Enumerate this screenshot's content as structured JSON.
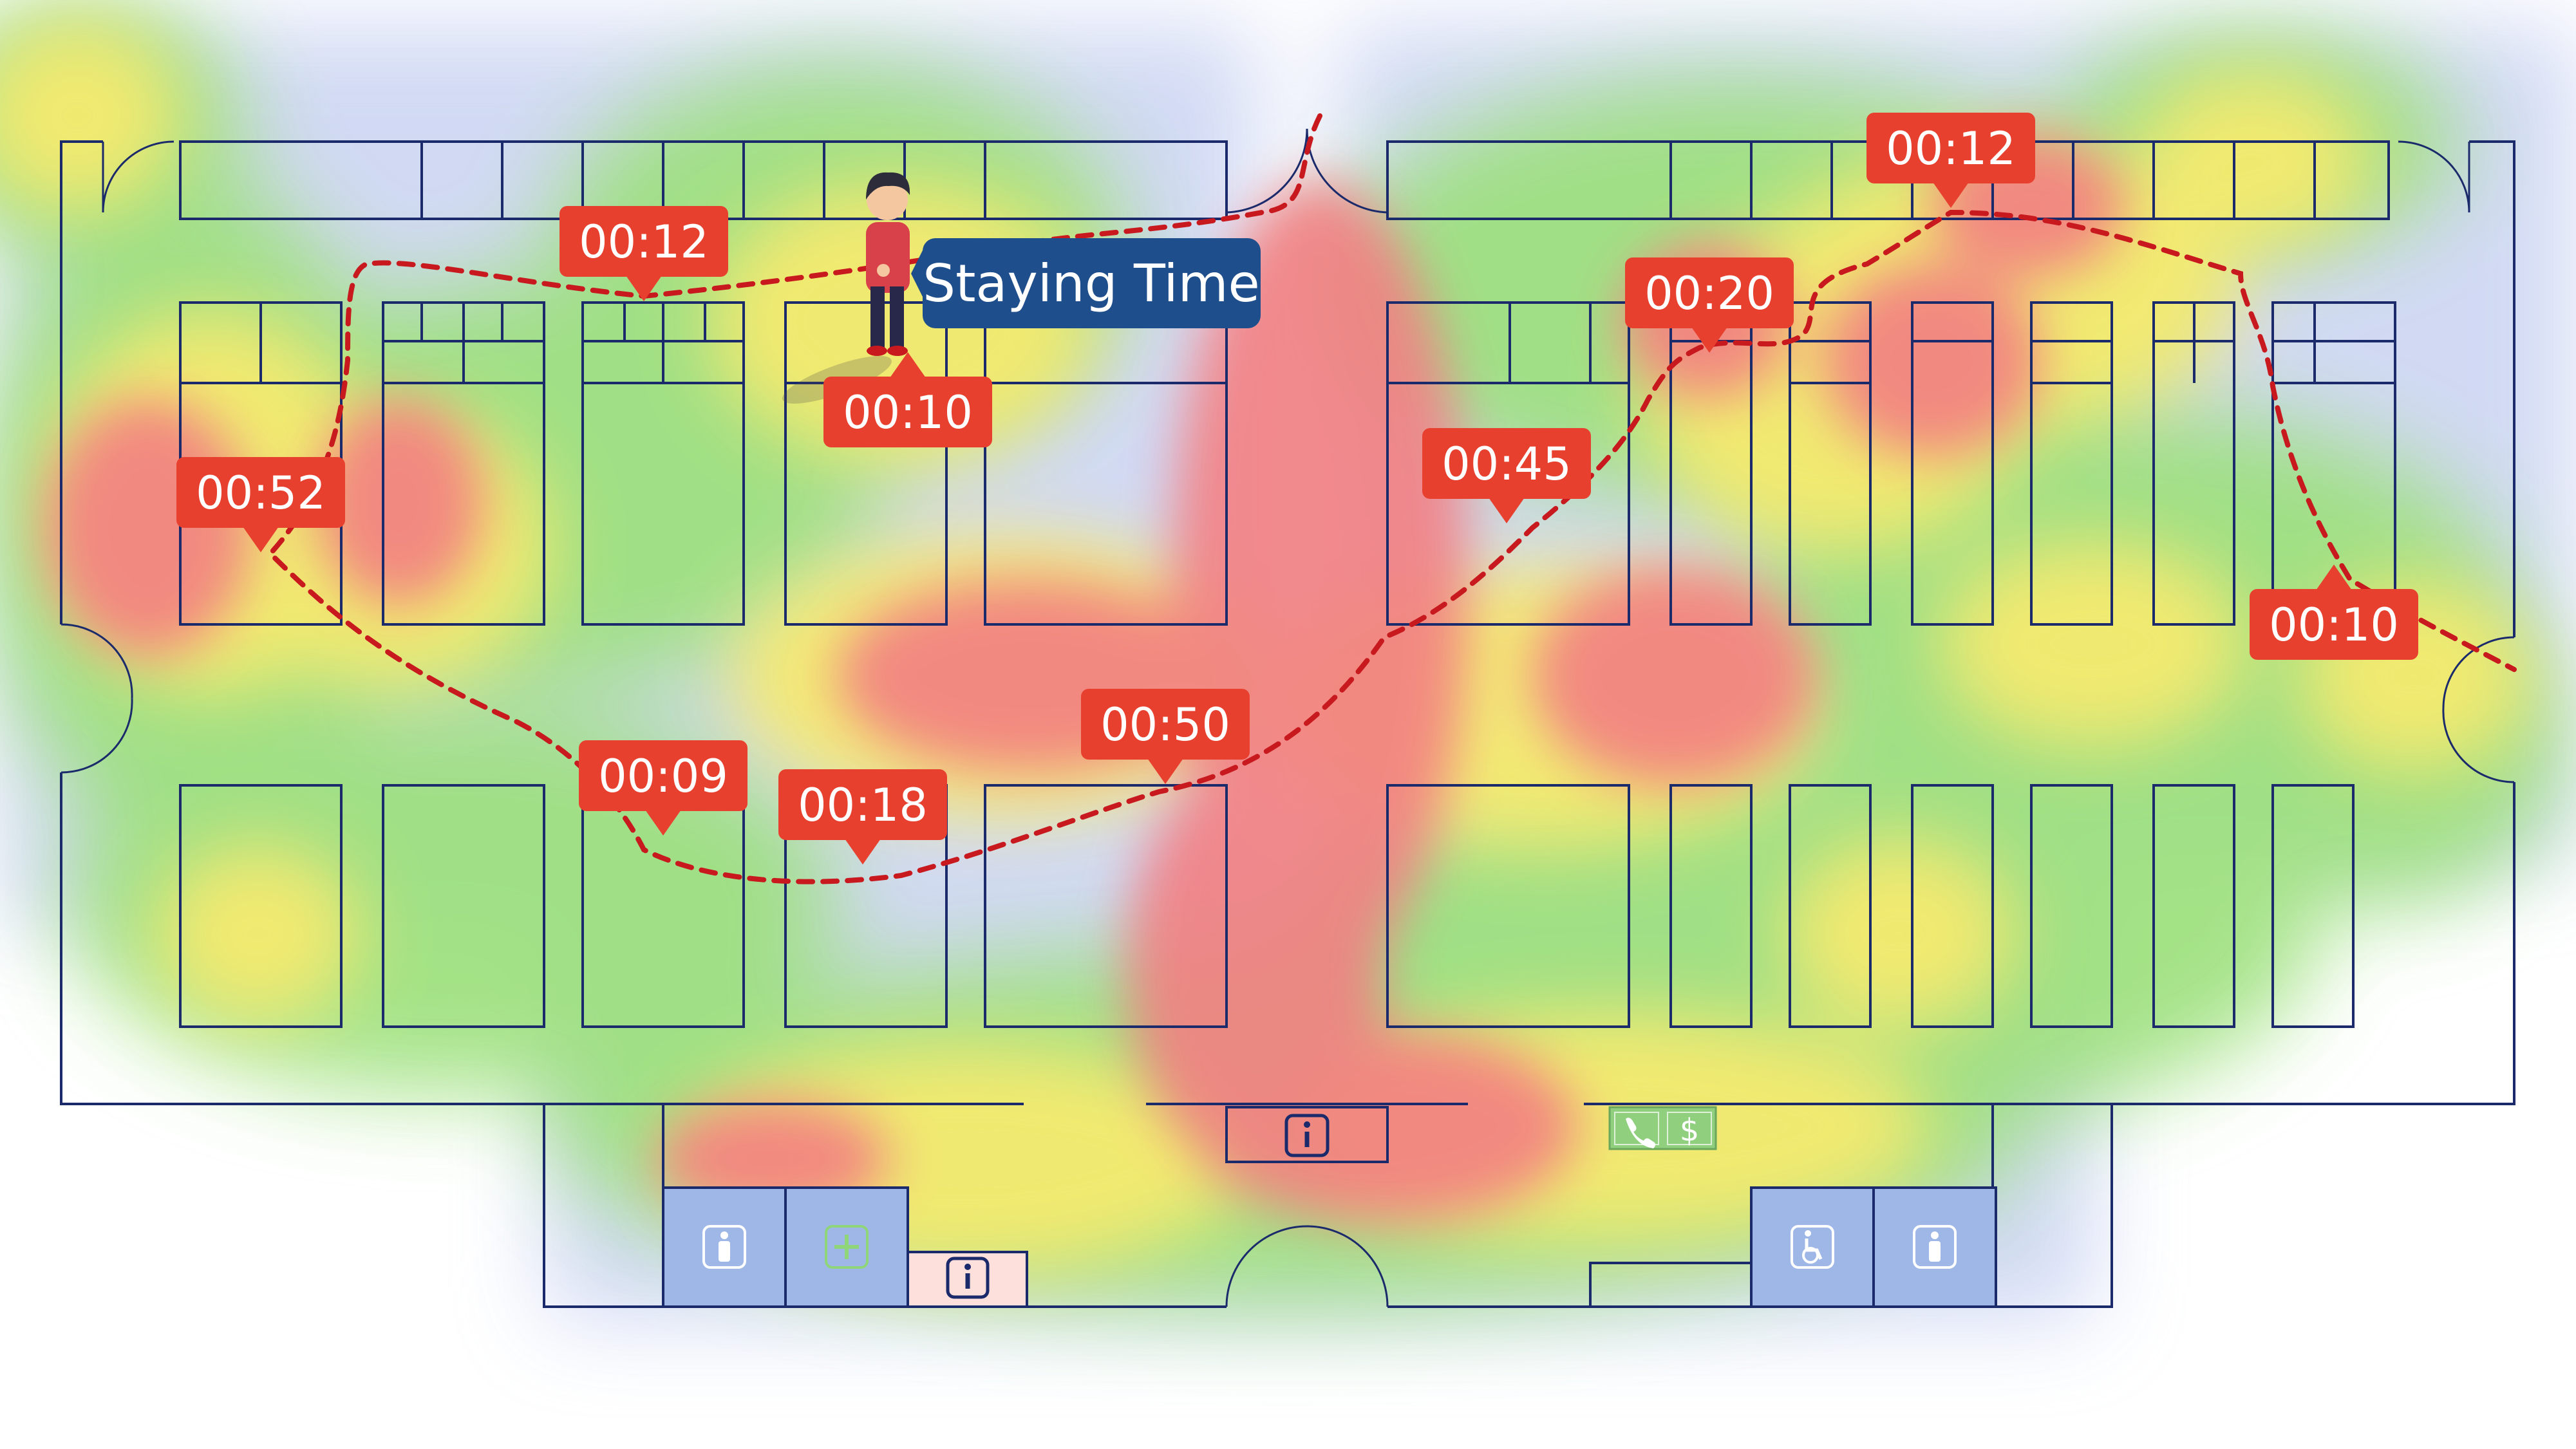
{
  "title": "Staying Time",
  "colors": {
    "plan_stroke": "#1b2a6b",
    "route": "#c8191f",
    "tag": "#e8402f",
    "title_box": "#1f4e8c",
    "restroom_fill": "#9fb7e6",
    "heat_hot": "#f27f82",
    "heat_warm": "#f5ea6f",
    "heat_mid": "#9be07a",
    "heat_cool": "#c9d3f2"
  },
  "time_tags": [
    {
      "label": "00:12"
    },
    {
      "label": "00:10"
    },
    {
      "label": "00:52"
    },
    {
      "label": "00:09"
    },
    {
      "label": "00:18"
    },
    {
      "label": "00:50"
    },
    {
      "label": "00:45"
    },
    {
      "label": "00:20"
    },
    {
      "label": "00:12"
    },
    {
      "label": "00:10"
    }
  ],
  "icons": {
    "info_main": "info-icon",
    "info_small": "info-icon",
    "phone": "phone-icon",
    "dollar": "dollar-icon",
    "restroom_1": "person-icon",
    "first_aid": "first-aid-icon",
    "accessible": "wheelchair-icon",
    "restroom_2": "person-icon"
  }
}
